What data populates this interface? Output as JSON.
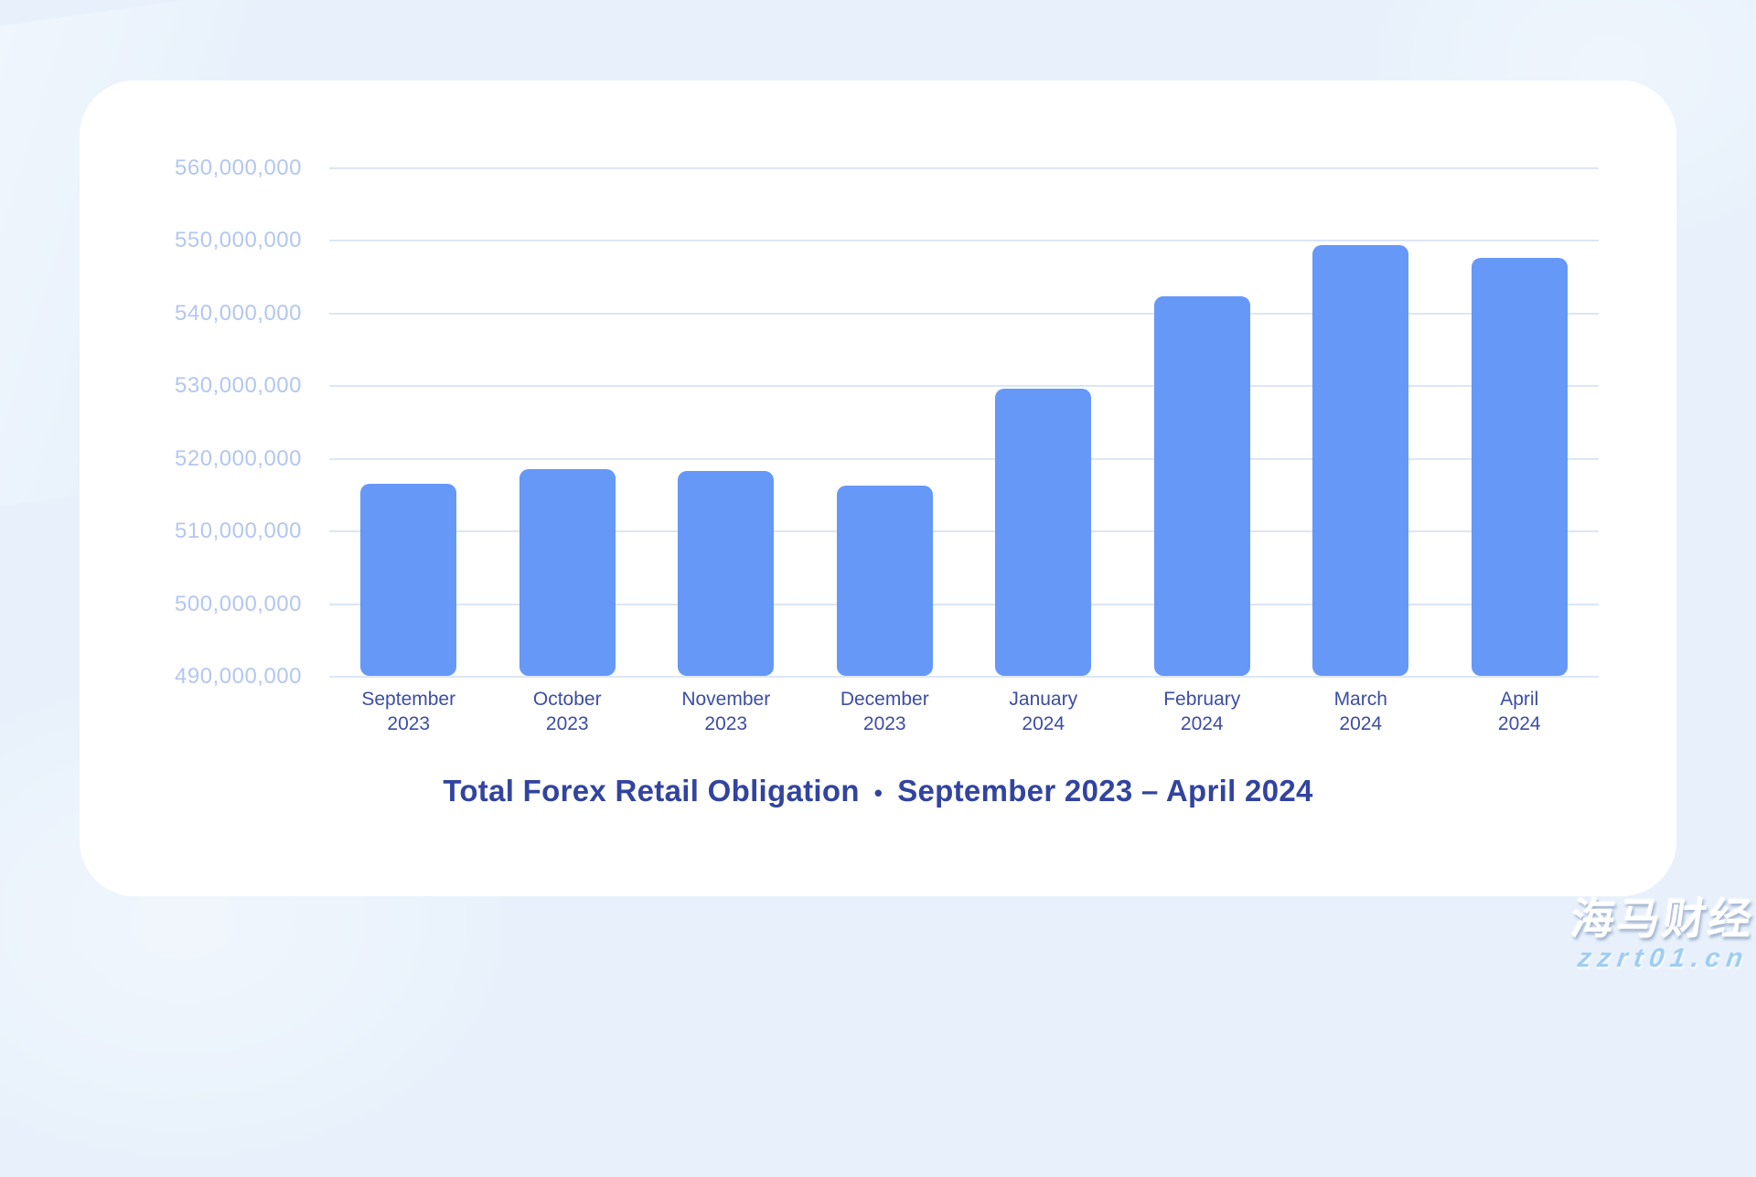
{
  "page": {
    "background_color": "#e8f1fb",
    "card_color": "#ffffff"
  },
  "chart_data": {
    "type": "bar",
    "title": "Total Forex Retail Obligation",
    "title_separator": "•",
    "title_range": "September 2023 – April 2024",
    "categories": [
      {
        "month": "September",
        "year": "2023"
      },
      {
        "month": "October",
        "year": "2023"
      },
      {
        "month": "November",
        "year": "2023"
      },
      {
        "month": "December",
        "year": "2023"
      },
      {
        "month": "January",
        "year": "2024"
      },
      {
        "month": "February",
        "year": "2024"
      },
      {
        "month": "March",
        "year": "2024"
      },
      {
        "month": "April",
        "year": "2024"
      }
    ],
    "values": [
      516400000,
      518500000,
      518200000,
      516200000,
      529500000,
      542300000,
      549300000,
      547600000
    ],
    "y_ticks": [
      "560,000,000",
      "550,000,000",
      "540,000,000",
      "530,000,000",
      "520,000,000",
      "510,000,000",
      "500,000,000",
      "490,000,000"
    ],
    "ylim": [
      490000000,
      560000000
    ],
    "xlabel": "",
    "ylabel": "",
    "legend": "none",
    "grid": "horizontal",
    "bar_color": "#6598f7",
    "gridline_color": "#dce6f6",
    "y_tick_color": "#b3c7ef",
    "x_tick_color": "#3c4da5",
    "title_color": "#32449f"
  },
  "watermark": {
    "brand": "海马财经",
    "url": "zzrt01.cn"
  }
}
